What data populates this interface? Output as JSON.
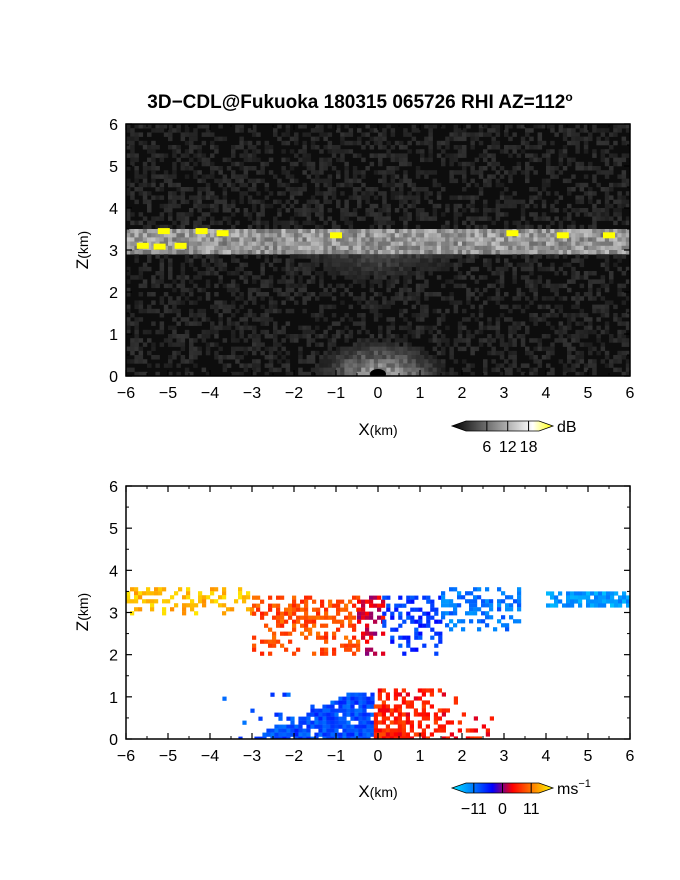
{
  "title": "3D−CDL@Fukuoka 180315 065726 RHI AZ=112",
  "title_sup": "o",
  "chart_data": [
    {
      "type": "heatmap",
      "panel": "reflectivity",
      "xlabel": "X",
      "xlabel_unit": "(km)",
      "ylabel": "Z",
      "ylabel_unit": "(km)",
      "xlim": [
        -6,
        6
      ],
      "ylim": [
        0,
        6
      ],
      "xticks": [
        -6,
        -5,
        -4,
        -3,
        -2,
        -1,
        0,
        1,
        2,
        3,
        4,
        5,
        6
      ],
      "yticks": [
        0,
        1,
        2,
        3,
        4,
        5,
        6
      ],
      "grid": false,
      "colorbar": {
        "unit": "dB",
        "ticks": [
          6,
          12,
          18
        ],
        "range": [
          0,
          21
        ],
        "colors": [
          "#000000",
          "#404040",
          "#808080",
          "#c0c0c0",
          "#ffffff",
          "#ffff00"
        ]
      },
      "layers": [
        {
          "x": [
            -6.0,
            6.0
          ],
          "z": [
            3.0,
            3.6
          ],
          "intensity": 0.75
        },
        {
          "x": [
            -3.2,
            3.2
          ],
          "z": [
            1.9,
            3.0
          ],
          "intensity": 0.4
        },
        {
          "x": [
            -1.9,
            1.9
          ],
          "z": [
            0.0,
            1.1
          ],
          "intensity": 0.85
        }
      ],
      "highlights": [
        {
          "x": -5.1,
          "z": 3.45
        },
        {
          "x": -4.2,
          "z": 3.45
        },
        {
          "x": -3.7,
          "z": 3.4
        },
        {
          "x": -5.6,
          "z": 3.1
        },
        {
          "x": -5.2,
          "z": 3.08
        },
        {
          "x": -4.7,
          "z": 3.1
        },
        {
          "x": -1.0,
          "z": 3.35
        },
        {
          "x": 3.2,
          "z": 3.4
        },
        {
          "x": 4.4,
          "z": 3.35
        },
        {
          "x": 5.5,
          "z": 3.35
        }
      ]
    },
    {
      "type": "heatmap",
      "panel": "doppler-velocity",
      "xlabel": "X",
      "xlabel_unit": "(km)",
      "ylabel": "Z",
      "ylabel_unit": "(km)",
      "xlim": [
        -6,
        6
      ],
      "ylim": [
        0,
        6
      ],
      "xticks": [
        -6,
        -5,
        -4,
        -3,
        -2,
        -1,
        0,
        1,
        2,
        3,
        4,
        5,
        6
      ],
      "yticks": [
        0,
        1,
        2,
        3,
        4,
        5,
        6
      ],
      "grid": false,
      "colorbar": {
        "unit": "ms",
        "unit_sup": "−1",
        "ticks": [
          "−11",
          "0",
          "11"
        ],
        "tick_values": [
          -11,
          0,
          11
        ],
        "range": [
          -14,
          14
        ],
        "colors": [
          "#00e5ff",
          "#0080ff",
          "#0000ff",
          "#ff0000",
          "#ff8000",
          "#ffff00"
        ]
      },
      "regions": [
        {
          "x": [
            -6.0,
            -3.0
          ],
          "z": [
            3.0,
            3.6
          ],
          "velocity": 11
        },
        {
          "x": [
            -3.0,
            -0.5
          ],
          "z": [
            2.0,
            3.4
          ],
          "velocity": 6
        },
        {
          "x": [
            -0.5,
            0.1
          ],
          "z": [
            2.0,
            3.4
          ],
          "velocity": 2
        },
        {
          "x": [
            0.1,
            1.5
          ],
          "z": [
            2.0,
            3.4
          ],
          "velocity": -5
        },
        {
          "x": [
            1.5,
            3.4
          ],
          "z": [
            2.6,
            3.6
          ],
          "velocity": -8
        },
        {
          "x": [
            4.0,
            6.0
          ],
          "z": [
            3.2,
            3.5
          ],
          "velocity": -10
        },
        {
          "x": [
            -3.8,
            -0.1
          ],
          "z": [
            0.0,
            1.1
          ],
          "velocity": -6
        },
        {
          "x": [
            -0.1,
            2.7
          ],
          "z": [
            0.0,
            1.2
          ],
          "velocity": 4
        }
      ]
    }
  ]
}
